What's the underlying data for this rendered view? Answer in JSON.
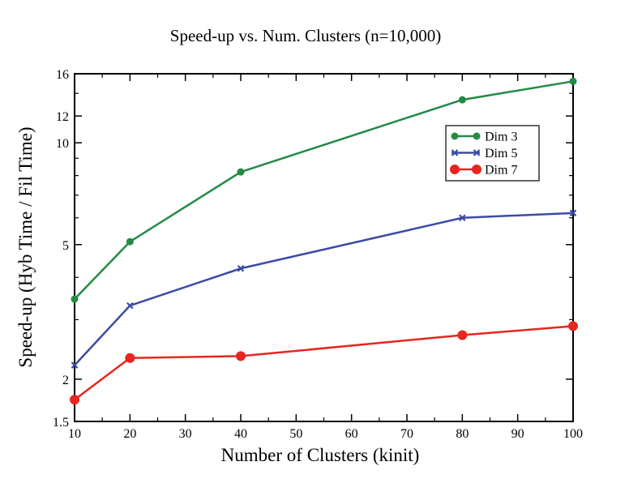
{
  "chart_data": {
    "type": "line",
    "title": "Speed-up vs. Num. Clusters (n=10,000)",
    "xlabel": "Number of Clusters (kinit)",
    "ylabel": "Speed-up (Hyb Time / Fil Time)",
    "xlim": [
      10,
      100
    ],
    "ylim": [
      1.5,
      16
    ],
    "yscale": "log",
    "x_ticks": [
      10,
      20,
      30,
      40,
      50,
      60,
      70,
      80,
      90,
      100
    ],
    "y_ticks": [
      1.5,
      2,
      5,
      10,
      12,
      16
    ],
    "y_tick_labels": [
      "1.5",
      "2",
      "5",
      "10",
      "12",
      "16"
    ],
    "grid": false,
    "legend_position": "top-right",
    "series": [
      {
        "name": "Dim 3",
        "color": "#238b45",
        "marker": "circle-small",
        "x": [
          10,
          20,
          40,
          80,
          100
        ],
        "y": [
          3.45,
          5.1,
          8.2,
          13.4,
          15.2
        ]
      },
      {
        "name": "Dim 5",
        "color": "#3c4ba6",
        "marker": "x",
        "x": [
          10,
          20,
          40,
          80,
          100
        ],
        "y": [
          2.2,
          3.3,
          4.25,
          6.0,
          6.2
        ]
      },
      {
        "name": "Dim 7",
        "color": "#e8251f",
        "marker": "circle-large",
        "x": [
          10,
          20,
          40,
          80,
          100
        ],
        "y": [
          1.74,
          2.31,
          2.34,
          2.7,
          2.87
        ]
      }
    ]
  }
}
